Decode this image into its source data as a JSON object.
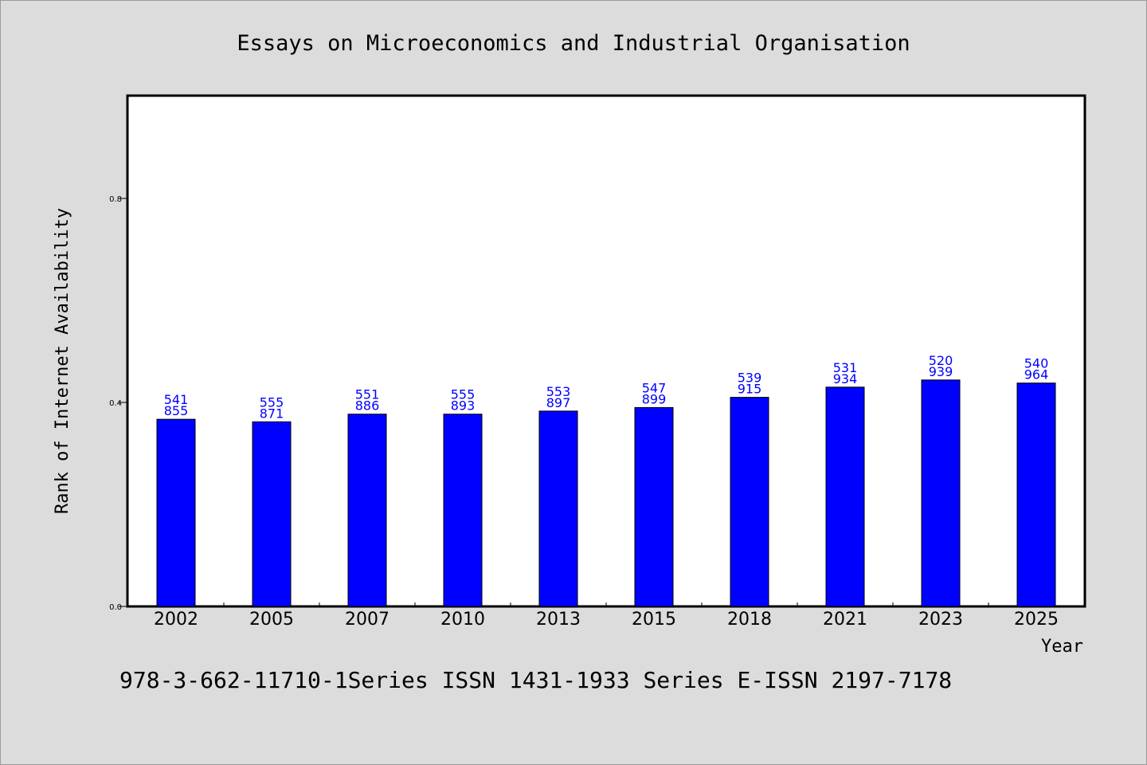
{
  "colors": {
    "background": "#dcdcdc",
    "plot_area": "#ffffff",
    "bar_fill": "#0000ff",
    "bar_stroke": "#000000",
    "data_label": "#0000ff"
  },
  "footer": {
    "text": "978-3-662-11710-1Series ISSN 1431-1933 Series E-ISSN 2197-7178"
  },
  "chart_data": {
    "type": "bar",
    "title": "Essays on Microeconomics and Industrial Organisation",
    "xlabel": "Year",
    "ylabel": "Rank of Internet Availability",
    "categories": [
      "2002",
      "2005",
      "2007",
      "2010",
      "2013",
      "2015",
      "2018",
      "2021",
      "2023",
      "2025"
    ],
    "values": [
      0.367,
      0.362,
      0.377,
      0.377,
      0.383,
      0.39,
      0.41,
      0.43,
      0.444,
      0.438
    ],
    "data_labels": [
      [
        "541",
        "855"
      ],
      [
        "555",
        "871"
      ],
      [
        "551",
        "886"
      ],
      [
        "555",
        "893"
      ],
      [
        "553",
        "897"
      ],
      [
        "547",
        "899"
      ],
      [
        "539",
        "915"
      ],
      [
        "531",
        "934"
      ],
      [
        "520",
        "939"
      ],
      [
        "540",
        "964"
      ]
    ],
    "yticks": [
      0.0,
      0.4,
      0.8
    ],
    "ytick_labels": [
      "0.0",
      "0.4",
      "0.8"
    ],
    "ylim": [
      0,
      1.0
    ],
    "grid": false,
    "legend": "none"
  }
}
